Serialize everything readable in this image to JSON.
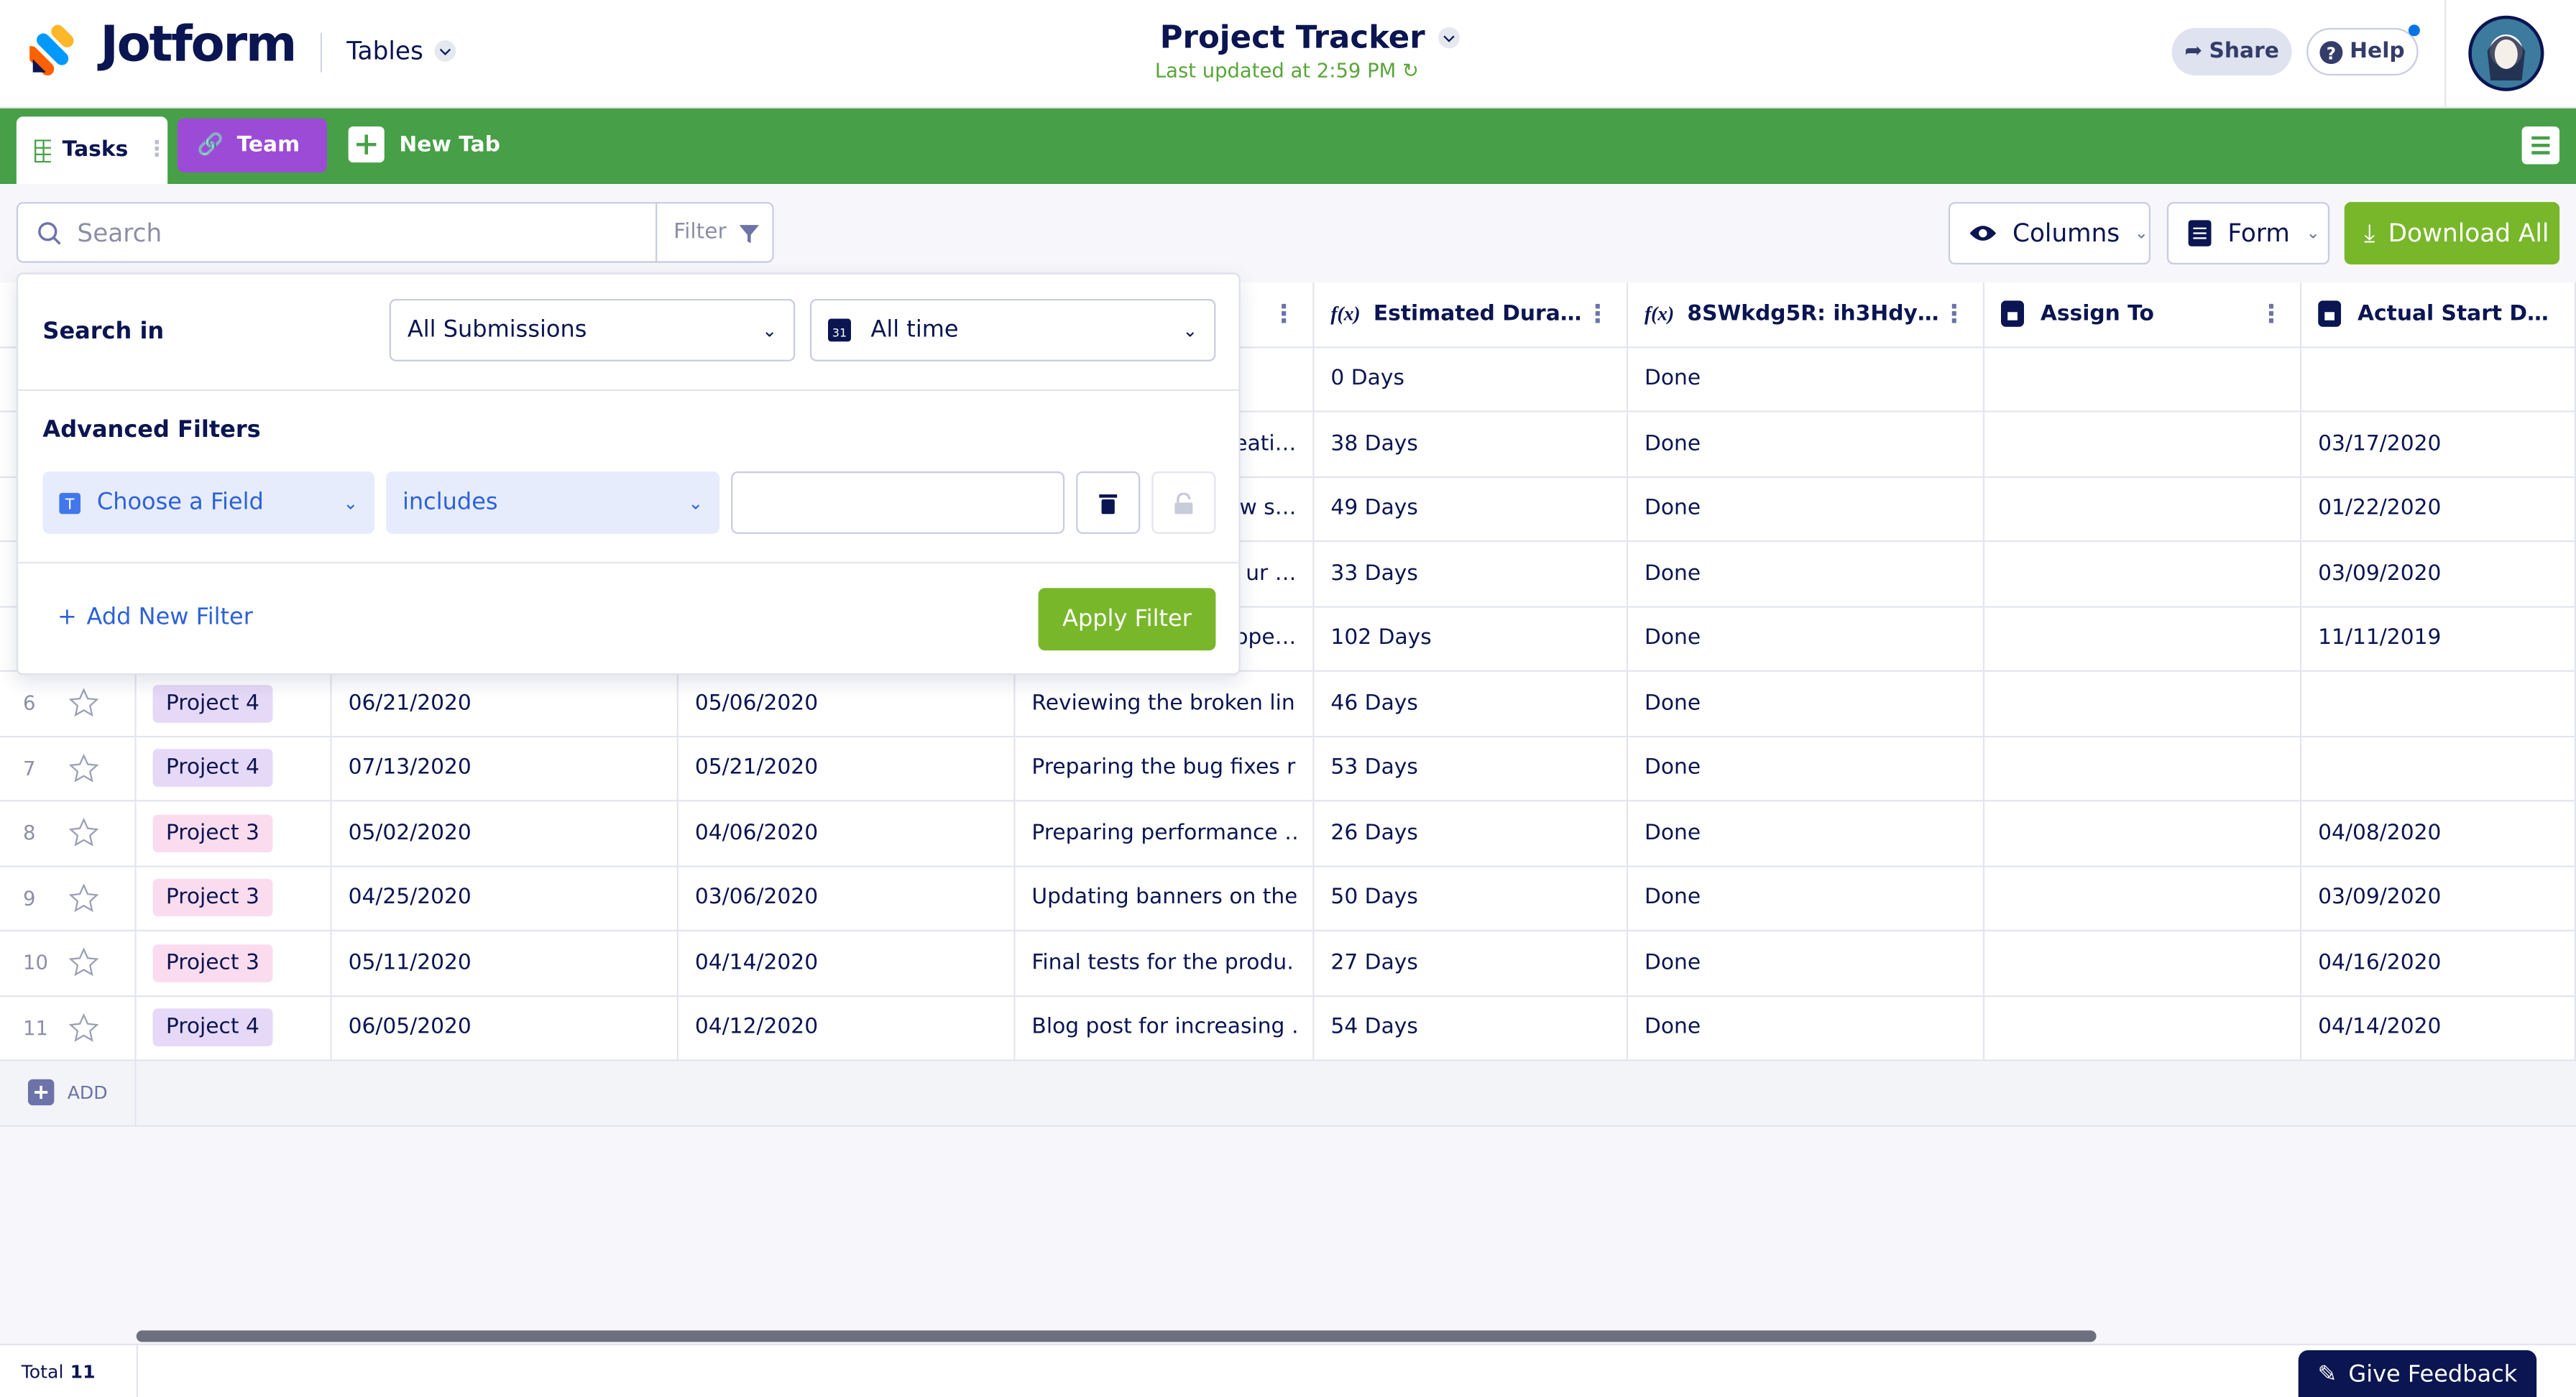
{
  "header": {
    "logo": "Jotform",
    "section": "Tables",
    "title": "Project Tracker",
    "subtitle": "Last updated at 2:59 PM",
    "share": "Share",
    "help": "Help"
  },
  "tabs": [
    "Tasks",
    "Team",
    "New Tab"
  ],
  "toolbar": {
    "search_placeholder": "Search",
    "filter": "Filter",
    "columns": "Columns",
    "form": "Form",
    "download": "Download All"
  },
  "table": {
    "columns": [
      "Estimated Durati…",
      "8SWkdg5R: ih3HdyHA",
      "Assign To",
      "Actual Start Date"
    ],
    "rows": [
      {
        "number": null,
        "project": null,
        "tag_color": null,
        "due": null,
        "start": null,
        "description": null,
        "duration": "0 Days",
        "status": "Done",
        "assign": null,
        "actual": null
      },
      {
        "number": null,
        "project": null,
        "tag_color": null,
        "due": null,
        "start": null,
        "description": "eati…",
        "duration": "38 Days",
        "status": "Done",
        "assign": null,
        "actual": "03/17/2020"
      },
      {
        "number": null,
        "project": null,
        "tag_color": null,
        "due": null,
        "start": null,
        "description": "w s…",
        "duration": "49 Days",
        "status": "Done",
        "assign": null,
        "actual": "01/22/2020"
      },
      {
        "number": null,
        "project": null,
        "tag_color": null,
        "due": null,
        "start": null,
        "description": "ur …",
        "duration": "33 Days",
        "status": "Done",
        "assign": null,
        "actual": "03/09/2020"
      },
      {
        "number": null,
        "project": null,
        "tag_color": null,
        "due": null,
        "start": null,
        "description": "ope…",
        "duration": "102 Days",
        "status": "Done",
        "assign": null,
        "actual": "11/11/2019"
      },
      {
        "number": 6,
        "project": "Project 4",
        "tag_color": "#e6d9f7",
        "due": "06/21/2020",
        "start": "05/06/2020",
        "description": "Reviewing the broken lin…",
        "duration": "46 Days",
        "status": "Done",
        "assign": null,
        "actual": null
      },
      {
        "number": 7,
        "project": "Project 4",
        "tag_color": "#e6d9f7",
        "due": "07/13/2020",
        "start": "05/21/2020",
        "description": "Preparing the bug fixes r…",
        "duration": "53 Days",
        "status": "Done",
        "assign": null,
        "actual": null
      },
      {
        "number": 8,
        "project": "Project 3",
        "tag_color": "#fbdcef",
        "due": "05/02/2020",
        "start": "04/06/2020",
        "description": "Preparing performance …",
        "duration": "26 Days",
        "status": "Done",
        "assign": null,
        "actual": "04/08/2020"
      },
      {
        "number": 9,
        "project": "Project 3",
        "tag_color": "#fbdcef",
        "due": "04/25/2020",
        "start": "03/06/2020",
        "description": "Updating banners on the…",
        "duration": "50 Days",
        "status": "Done",
        "assign": null,
        "actual": "03/09/2020"
      },
      {
        "number": 10,
        "project": "Project 3",
        "tag_color": "#fbdcef",
        "due": "05/11/2020",
        "start": "04/14/2020",
        "description": "Final tests for the produ…",
        "duration": "27 Days",
        "status": "Done",
        "assign": null,
        "actual": "04/16/2020"
      },
      {
        "number": 11,
        "project": "Project 4",
        "tag_color": "#e6d9f7",
        "due": "06/05/2020",
        "start": "04/12/2020",
        "description": "Blog post for increasing …",
        "duration": "54 Days",
        "status": "Done",
        "assign": null,
        "actual": "04/14/2020"
      }
    ],
    "add": "ADD"
  },
  "filter_popup": {
    "search_in": "Search in",
    "submissions": "All Submissions",
    "time": "All time",
    "advanced": "Advanced Filters",
    "field": "Choose a Field",
    "operator": "includes",
    "add_filter": "Add New Filter",
    "apply": "Apply Filter"
  },
  "footer": {
    "total_label": "Total",
    "total": 11,
    "feedback": "Give Feedback"
  }
}
